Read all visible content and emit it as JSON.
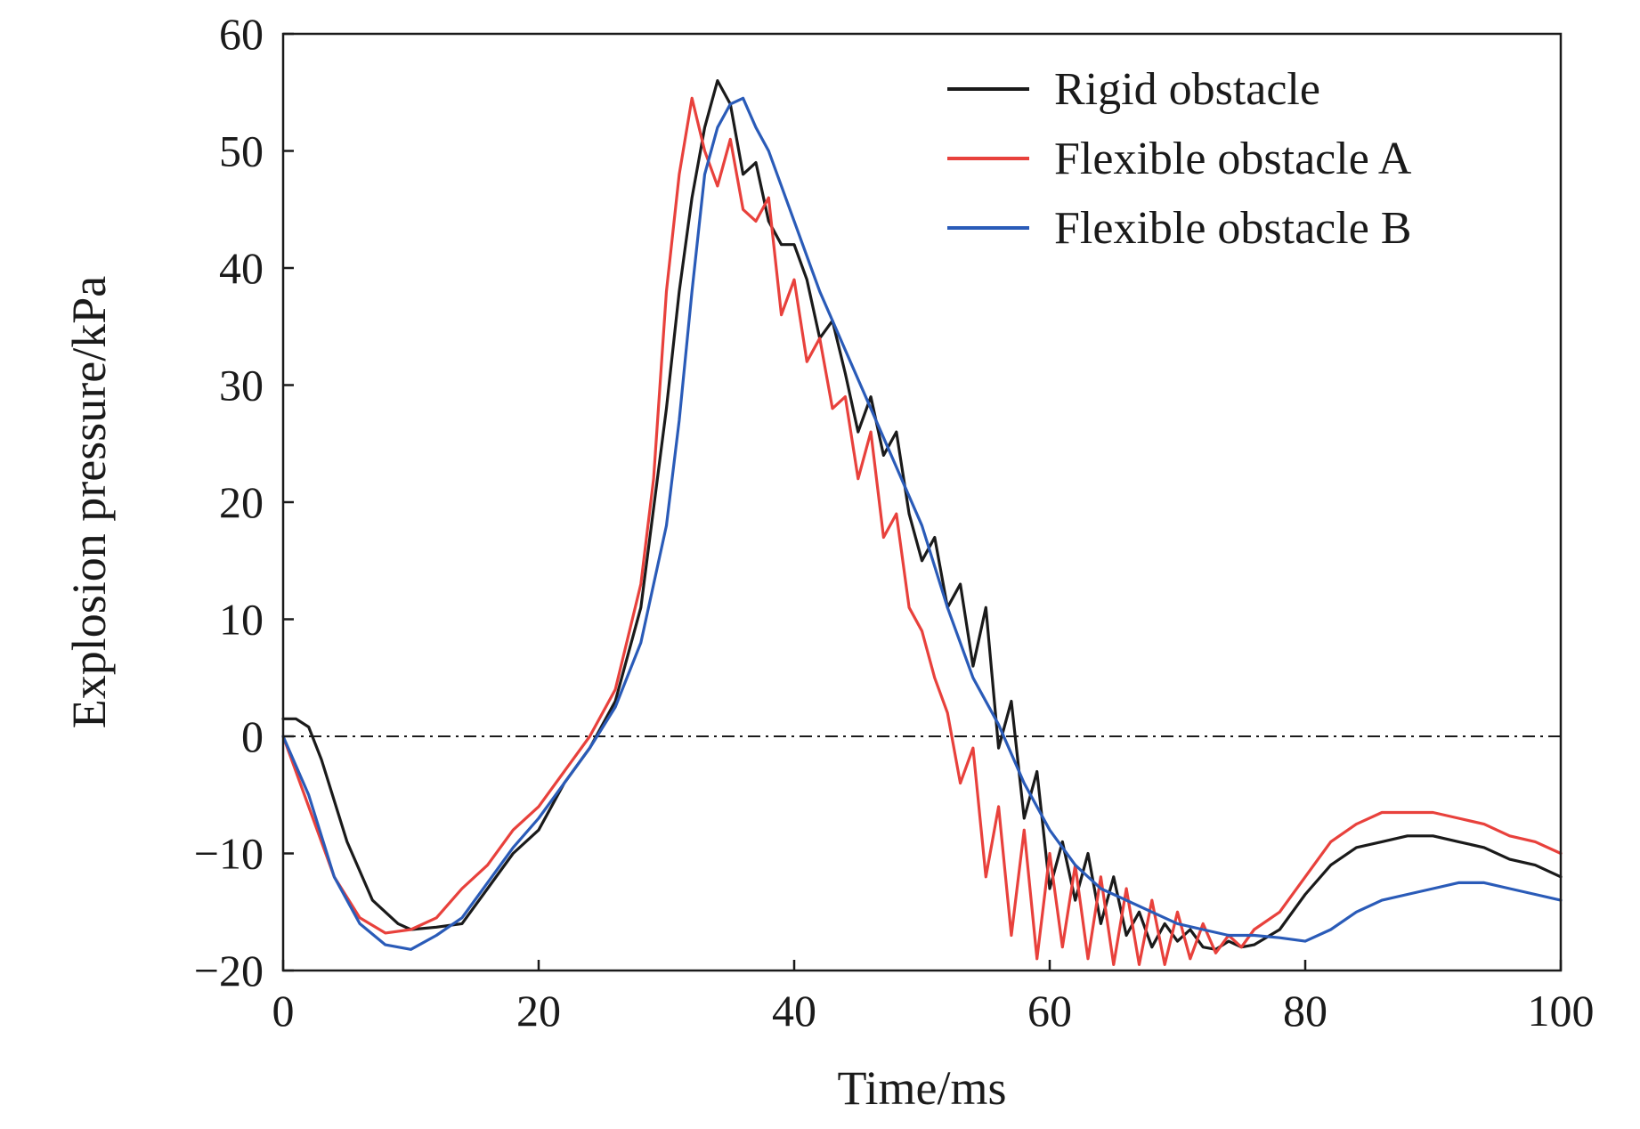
{
  "chart_data": {
    "type": "line",
    "title": "",
    "xlabel": "Time/ms",
    "ylabel": "Explosion pressure/kPa",
    "xlim": [
      0,
      100
    ],
    "ylim": [
      -20,
      60
    ],
    "xticks": [
      0,
      20,
      40,
      60,
      80,
      100
    ],
    "yticks": [
      -20,
      -10,
      0,
      10,
      20,
      30,
      40,
      50,
      60
    ],
    "xtick_labels": [
      "0",
      "20",
      "40",
      "60",
      "80",
      "100"
    ],
    "ytick_labels": [
      "−20",
      "−10",
      "0",
      "10",
      "20",
      "30",
      "40",
      "50",
      "60"
    ],
    "reference_line": {
      "y": 0,
      "style": "dash-dot"
    },
    "legend_position": "top-right",
    "series": [
      {
        "name": "Rigid obstacle",
        "color": "#1a1a1a",
        "x": [
          0,
          1,
          2,
          3,
          5,
          7,
          9,
          10,
          12,
          14,
          16,
          18,
          20,
          22,
          24,
          26,
          28,
          30,
          31,
          32,
          33,
          34,
          35,
          36,
          37,
          38,
          39,
          40,
          41,
          42,
          43,
          44,
          45,
          46,
          47,
          48,
          49,
          50,
          51,
          52,
          53,
          54,
          55,
          56,
          57,
          58,
          59,
          60,
          61,
          62,
          63,
          64,
          65,
          66,
          67,
          68,
          69,
          70,
          71,
          72,
          73,
          74,
          75,
          76,
          78,
          80,
          82,
          84,
          86,
          88,
          90,
          92,
          94,
          96,
          98,
          100
        ],
        "y": [
          1.5,
          1.5,
          0.8,
          -2,
          -9,
          -14,
          -16,
          -16.5,
          -16.3,
          -16,
          -13,
          -10,
          -8,
          -4,
          -1,
          3,
          11,
          28,
          38,
          46,
          52,
          56,
          54,
          48,
          49,
          44,
          42,
          42,
          39,
          34,
          35.5,
          31,
          26,
          29,
          24,
          26,
          19,
          15,
          17,
          11,
          13,
          6,
          11,
          -1,
          3,
          -7,
          -3,
          -13,
          -9,
          -14,
          -10,
          -16,
          -12,
          -17,
          -15,
          -18,
          -16,
          -17.5,
          -16.5,
          -18,
          -18.2,
          -17.5,
          -18,
          -17.8,
          -16.5,
          -13.5,
          -11,
          -9.5,
          -9,
          -8.5,
          -8.5,
          -9,
          -9.5,
          -10.5,
          -11,
          -12
        ]
      },
      {
        "name": "Flexible obstacle A",
        "color": "#e8413c",
        "x": [
          0,
          2,
          4,
          6,
          8,
          10,
          12,
          14,
          16,
          18,
          20,
          22,
          24,
          26,
          28,
          29,
          30,
          31,
          32,
          33,
          34,
          35,
          36,
          37,
          38,
          39,
          40,
          41,
          42,
          43,
          44,
          45,
          46,
          47,
          48,
          49,
          50,
          51,
          52,
          53,
          54,
          55,
          56,
          57,
          58,
          59,
          60,
          61,
          62,
          63,
          64,
          65,
          66,
          67,
          68,
          69,
          70,
          71,
          72,
          73,
          74,
          75,
          76,
          78,
          80,
          82,
          84,
          86,
          88,
          90,
          92,
          94,
          96,
          98,
          100
        ],
        "y": [
          0,
          -6,
          -12,
          -15.5,
          -16.8,
          -16.5,
          -15.5,
          -13,
          -11,
          -8,
          -6,
          -3,
          0,
          4,
          13,
          22,
          38,
          48,
          54.5,
          50,
          47,
          51,
          45,
          44,
          46,
          36,
          39,
          32,
          34,
          28,
          29,
          22,
          26,
          17,
          19,
          11,
          9,
          5,
          2,
          -4,
          -1,
          -12,
          -6,
          -17,
          -8,
          -19,
          -10,
          -18,
          -11,
          -19,
          -12,
          -19.5,
          -13,
          -19.5,
          -14,
          -19.5,
          -15,
          -19,
          -16,
          -18.5,
          -17,
          -18,
          -16.5,
          -15,
          -12,
          -9,
          -7.5,
          -6.5,
          -6.5,
          -6.5,
          -7,
          -7.5,
          -8.5,
          -9,
          -10
        ]
      },
      {
        "name": "Flexible obstacle B",
        "color": "#2a5bb8",
        "x": [
          0,
          2,
          4,
          6,
          8,
          10,
          12,
          14,
          16,
          18,
          20,
          22,
          24,
          26,
          28,
          30,
          31,
          32,
          33,
          34,
          35,
          36,
          37,
          38,
          40,
          42,
          44,
          46,
          48,
          50,
          52,
          54,
          56,
          58,
          60,
          62,
          64,
          66,
          68,
          70,
          72,
          74,
          76,
          78,
          80,
          82,
          84,
          86,
          88,
          90,
          92,
          94,
          96,
          98,
          100
        ],
        "y": [
          0,
          -5,
          -12,
          -16,
          -17.8,
          -18.2,
          -17,
          -15.5,
          -12.5,
          -9.5,
          -7,
          -4,
          -1,
          2.5,
          8,
          18,
          27,
          38,
          48,
          52,
          54,
          54.5,
          52,
          50,
          44,
          38,
          33,
          28,
          23,
          18,
          11,
          5,
          1,
          -4,
          -8,
          -11,
          -13,
          -14,
          -15,
          -16,
          -16.5,
          -17,
          -17,
          -17.2,
          -17.5,
          -16.5,
          -15,
          -14,
          -13.5,
          -13,
          -12.5,
          -12.5,
          -13,
          -13.5,
          -14
        ]
      }
    ]
  }
}
